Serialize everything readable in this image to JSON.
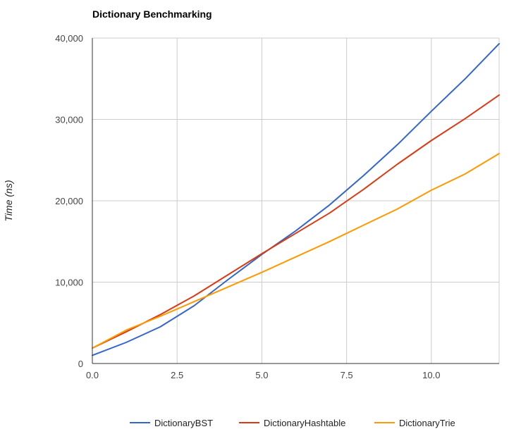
{
  "chart_data": {
    "type": "line",
    "title": "Dictionary Benchmarking",
    "xlabel": "",
    "ylabel": "Time (ns)",
    "xlim": [
      0,
      12
    ],
    "ylim": [
      0,
      40000
    ],
    "x_ticks": [
      0,
      2.5,
      5,
      7.5,
      10
    ],
    "x_tick_labels": [
      "0.0",
      "2.5",
      "5.0",
      "7.5",
      "10.0"
    ],
    "y_ticks": [
      0,
      10000,
      20000,
      30000,
      40000
    ],
    "y_tick_labels": [
      "0",
      "10,000",
      "20,000",
      "30,000",
      "40,000"
    ],
    "grid": true,
    "legend_position": "bottom",
    "x": [
      0,
      1,
      2,
      3,
      4,
      5,
      6,
      7,
      8,
      9,
      10,
      11,
      12
    ],
    "series": [
      {
        "name": "DictionaryBST",
        "color": "#3366cc",
        "values": [
          1000,
          2600,
          4500,
          7100,
          10300,
          13400,
          16300,
          19500,
          23100,
          26900,
          31000,
          35000,
          39300
        ]
      },
      {
        "name": "DictionaryHashtable",
        "color": "#dc3912",
        "values": [
          1900,
          3900,
          6000,
          8300,
          10900,
          13500,
          16000,
          18500,
          21400,
          24500,
          27400,
          30100,
          33000
        ]
      },
      {
        "name": "DictionaryTrie",
        "color": "#ff9900",
        "values": [
          1900,
          4100,
          5800,
          7600,
          9400,
          11200,
          13100,
          15000,
          17000,
          19000,
          21300,
          23300,
          25800
        ]
      }
    ]
  }
}
